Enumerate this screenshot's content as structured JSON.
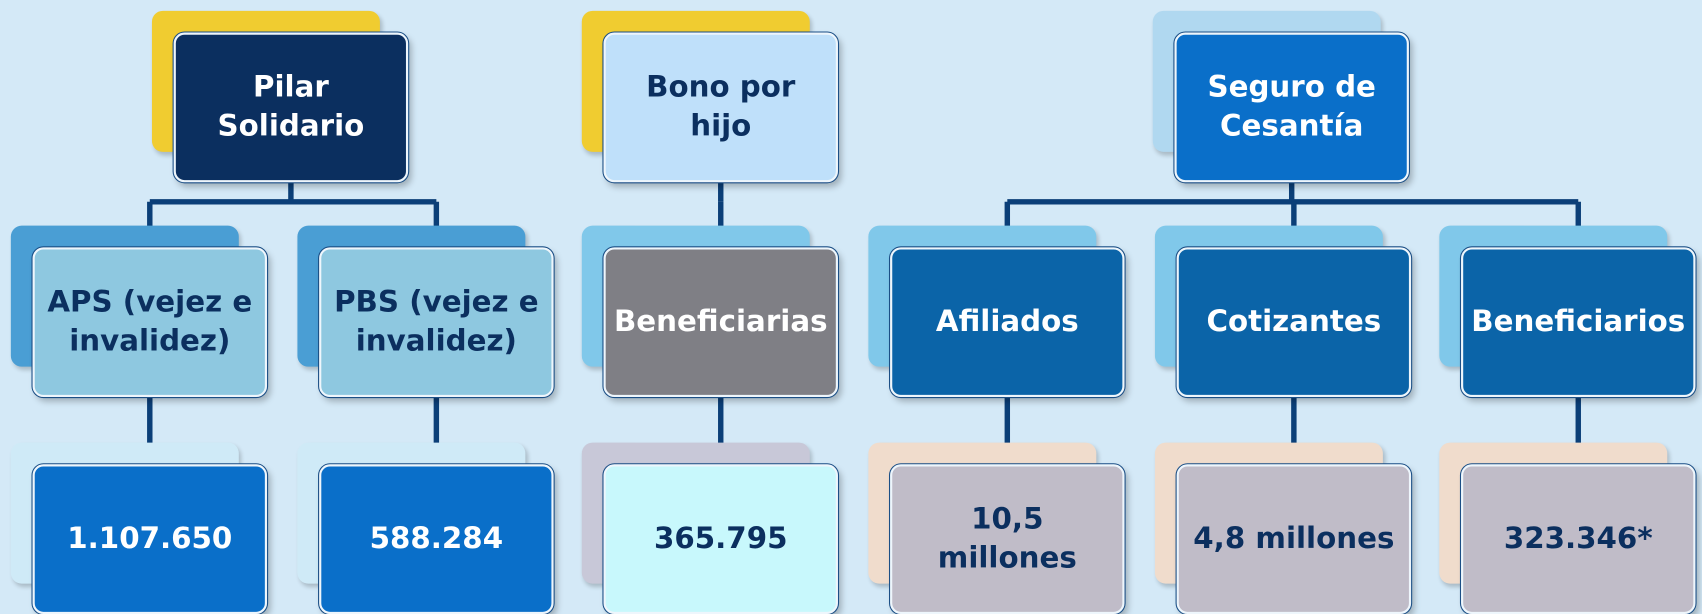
{
  "groups": [
    {
      "title": "Pilar Solidario",
      "children": [
        {
          "label": "APS (vejez e invalidez)",
          "value": "1.107.650"
        },
        {
          "label": "PBS (vejez e invalidez)",
          "value": "588.284"
        }
      ]
    },
    {
      "title": "Bono por hijo",
      "children": [
        {
          "label": "Beneficiarias",
          "value": "365.795"
        }
      ]
    },
    {
      "title": "Seguro de Cesantía",
      "children": [
        {
          "label": "Afiliados",
          "value": "10,5 millones"
        },
        {
          "label": "Cotizantes",
          "value": "4,8 millones"
        },
        {
          "label": "Beneficiarios",
          "value": "323.346*"
        }
      ]
    }
  ]
}
